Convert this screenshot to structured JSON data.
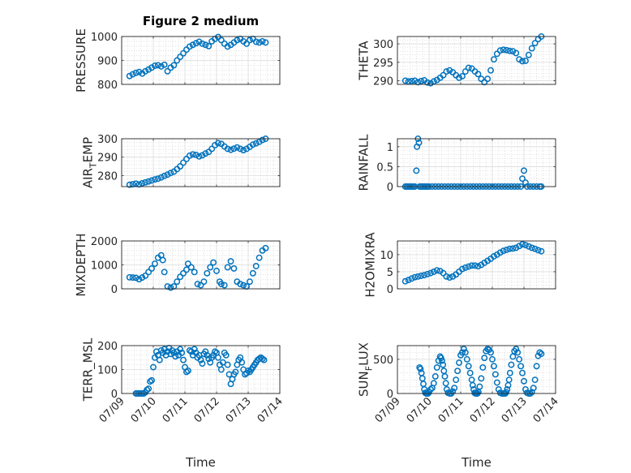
{
  "chart_data": [
    {
      "type": "scatter",
      "title": "Figure 2 medium",
      "xlabel": "",
      "ylabel": "PRESSURE",
      "xlim": [
        9,
        14
      ],
      "ylim": [
        800,
        1000
      ],
      "xticks": [
        9,
        10,
        11,
        12,
        13,
        14
      ],
      "xtick_labels": [],
      "yticks": [
        800,
        900,
        1000
      ],
      "ytick_labels": [
        "800",
        "900",
        "1000"
      ],
      "grid": true,
      "minor_grid": true,
      "color": "#0072BD",
      "x": [
        9.25,
        9.35,
        9.45,
        9.55,
        9.65,
        9.75,
        9.85,
        9.95,
        10.05,
        10.15,
        10.25,
        10.35,
        10.45,
        10.55,
        10.65,
        10.75,
        10.85,
        10.95,
        11.05,
        11.15,
        11.25,
        11.35,
        11.45,
        11.55,
        11.65,
        11.75,
        11.85,
        11.95,
        12.05,
        12.15,
        12.25,
        12.35,
        12.45,
        12.55,
        12.65,
        12.75,
        12.85,
        12.95,
        13.05,
        13.15,
        13.25,
        13.35,
        13.45,
        13.55
      ],
      "y": [
        835,
        842,
        848,
        852,
        845,
        855,
        862,
        870,
        878,
        880,
        875,
        882,
        855,
        870,
        880,
        900,
        915,
        930,
        945,
        958,
        965,
        972,
        978,
        970,
        965,
        960,
        980,
        990,
        998,
        985,
        970,
        958,
        965,
        975,
        985,
        990,
        980,
        970,
        985,
        990,
        978,
        975,
        980,
        975
      ]
    },
    {
      "type": "scatter",
      "title": "",
      "xlabel": "",
      "ylabel": "THETA",
      "xlim": [
        9,
        14
      ],
      "ylim": [
        289,
        302
      ],
      "xticks": [
        9,
        10,
        11,
        12,
        13,
        14
      ],
      "xtick_labels": [],
      "yticks": [
        290,
        295,
        300
      ],
      "ytick_labels": [
        "290",
        "295",
        "300"
      ],
      "grid": true,
      "minor_grid": true,
      "color": "#0072BD",
      "x": [
        9.25,
        9.35,
        9.45,
        9.55,
        9.65,
        9.75,
        9.85,
        9.95,
        10.05,
        10.15,
        10.25,
        10.35,
        10.45,
        10.55,
        10.65,
        10.75,
        10.85,
        10.95,
        11.05,
        11.15,
        11.25,
        11.35,
        11.45,
        11.55,
        11.65,
        11.75,
        11.85,
        11.95,
        12.05,
        12.15,
        12.25,
        12.35,
        12.45,
        12.55,
        12.65,
        12.75,
        12.85,
        12.95,
        13.05,
        13.15,
        13.25,
        13.35,
        13.45,
        13.55
      ],
      "y": [
        290.0,
        289.8,
        289.9,
        290.0,
        289.6,
        289.9,
        290.1,
        289.5,
        289.3,
        289.8,
        290.2,
        290.8,
        291.5,
        292.5,
        292.8,
        292.3,
        291.5,
        290.8,
        291.2,
        292.5,
        293.5,
        293.3,
        292.5,
        291.8,
        290.5,
        289.6,
        290.5,
        292.8,
        295.8,
        297.3,
        298.2,
        298.4,
        298.3,
        298.1,
        298.0,
        297.5,
        295.8,
        295.3,
        295.4,
        297.0,
        298.8,
        300.2,
        301.3,
        302.0
      ]
    },
    {
      "type": "scatter",
      "title": "",
      "xlabel": "",
      "ylabel": "AIR_TEMP",
      "xlim": [
        9,
        14
      ],
      "ylim": [
        274,
        300
      ],
      "xticks": [
        9,
        10,
        11,
        12,
        13,
        14
      ],
      "xtick_labels": [],
      "yticks": [
        280,
        290,
        300
      ],
      "ytick_labels": [
        "280",
        "290",
        "300"
      ],
      "grid": true,
      "minor_grid": true,
      "color": "#0072BD",
      "x": [
        9.25,
        9.35,
        9.45,
        9.55,
        9.65,
        9.75,
        9.85,
        9.95,
        10.05,
        10.15,
        10.25,
        10.35,
        10.45,
        10.55,
        10.65,
        10.75,
        10.85,
        10.95,
        11.05,
        11.15,
        11.25,
        11.35,
        11.45,
        11.55,
        11.65,
        11.75,
        11.85,
        11.95,
        12.05,
        12.15,
        12.25,
        12.35,
        12.45,
        12.55,
        12.65,
        12.75,
        12.85,
        12.95,
        13.05,
        13.15,
        13.25,
        13.35,
        13.45,
        13.55
      ],
      "y": [
        275.0,
        275.3,
        275.6,
        275.2,
        275.8,
        276.3,
        276.8,
        277.3,
        277.9,
        278.3,
        279.0,
        279.8,
        280.5,
        281.4,
        282.1,
        283.5,
        285.0,
        287.0,
        289.0,
        290.8,
        291.5,
        291.2,
        290.4,
        291.0,
        292.0,
        292.8,
        294.5,
        296.5,
        297.6,
        297.2,
        295.8,
        294.5,
        294.0,
        294.6,
        295.3,
        294.5,
        293.8,
        294.5,
        295.6,
        296.8,
        297.5,
        298.3,
        299.3,
        300.0
      ]
    },
    {
      "type": "scatter",
      "title": "",
      "xlabel": "",
      "ylabel": "RAINFALL",
      "xlim": [
        9,
        14
      ],
      "ylim": [
        0,
        1.2
      ],
      "xticks": [
        9,
        10,
        11,
        12,
        13,
        14
      ],
      "xtick_labels": [],
      "yticks": [
        0,
        0.5,
        1
      ],
      "ytick_labels": [
        "0",
        "0.5",
        "1"
      ],
      "grid": true,
      "minor_grid": true,
      "color": "#0072BD",
      "x": [
        9.25,
        9.3,
        9.35,
        9.4,
        9.45,
        9.5,
        9.55,
        9.6,
        9.62,
        9.65,
        9.68,
        9.7,
        9.75,
        9.8,
        9.85,
        9.9,
        9.95,
        10.0,
        10.1,
        10.2,
        10.3,
        10.4,
        10.5,
        10.6,
        10.7,
        10.8,
        10.9,
        11.0,
        11.1,
        11.2,
        11.3,
        11.4,
        11.5,
        11.6,
        11.7,
        11.8,
        11.9,
        12.0,
        12.1,
        12.2,
        12.3,
        12.4,
        12.5,
        12.6,
        12.7,
        12.8,
        12.9,
        12.95,
        13.0,
        13.05,
        13.1,
        13.2,
        13.3,
        13.4,
        13.5,
        13.55
      ],
      "y": [
        0,
        0,
        0,
        0,
        0,
        0,
        0,
        0.4,
        1.0,
        1.2,
        1.1,
        0,
        0,
        0,
        0,
        0,
        0,
        0,
        0,
        0,
        0,
        0,
        0,
        0,
        0,
        0,
        0,
        0,
        0,
        0,
        0,
        0,
        0,
        0,
        0,
        0,
        0,
        0,
        0,
        0,
        0,
        0,
        0,
        0,
        0,
        0,
        0,
        0.2,
        0.4,
        0.1,
        0,
        0,
        0,
        0,
        0,
        0
      ]
    },
    {
      "type": "scatter",
      "title": "",
      "xlabel": "",
      "ylabel": "MIXDEPTH",
      "xlim": [
        9,
        14
      ],
      "ylim": [
        0,
        2000
      ],
      "xticks": [
        9,
        10,
        11,
        12,
        13,
        14
      ],
      "xtick_labels": [],
      "yticks": [
        0,
        1000,
        2000
      ],
      "ytick_labels": [
        "0",
        "1000",
        "2000"
      ],
      "grid": true,
      "minor_grid": true,
      "color": "#0072BD",
      "x": [
        9.25,
        9.35,
        9.45,
        9.55,
        9.65,
        9.75,
        9.85,
        9.95,
        10.05,
        10.15,
        10.25,
        10.3,
        10.35,
        10.45,
        10.55,
        10.65,
        10.75,
        10.85,
        10.95,
        11.05,
        11.1,
        11.2,
        11.3,
        11.4,
        11.5,
        11.6,
        11.7,
        11.8,
        11.9,
        12.0,
        12.1,
        12.15,
        12.25,
        12.35,
        12.45,
        12.55,
        12.65,
        12.75,
        12.85,
        12.95,
        13.05,
        13.15,
        13.25,
        13.35,
        13.45,
        13.55
      ],
      "y": [
        480,
        470,
        460,
        400,
        470,
        550,
        700,
        850,
        1050,
        1300,
        1400,
        1200,
        700,
        100,
        50,
        100,
        300,
        500,
        650,
        800,
        1050,
        900,
        700,
        200,
        150,
        300,
        650,
        900,
        1100,
        750,
        300,
        200,
        150,
        900,
        1150,
        850,
        300,
        200,
        150,
        100,
        300,
        650,
        950,
        1300,
        1600,
        1700
      ]
    },
    {
      "type": "scatter",
      "title": "",
      "xlabel": "",
      "ylabel": "H2OMIXRA",
      "xlim": [
        9,
        14
      ],
      "ylim": [
        0,
        14
      ],
      "xticks": [
        9,
        10,
        11,
        12,
        13,
        14
      ],
      "xtick_labels": [],
      "yticks": [
        0,
        5,
        10
      ],
      "ytick_labels": [
        "0",
        "5",
        "10"
      ],
      "grid": true,
      "minor_grid": true,
      "color": "#0072BD",
      "x": [
        9.25,
        9.35,
        9.45,
        9.55,
        9.65,
        9.75,
        9.85,
        9.95,
        10.05,
        10.15,
        10.25,
        10.35,
        10.45,
        10.55,
        10.65,
        10.75,
        10.85,
        10.95,
        11.05,
        11.15,
        11.25,
        11.35,
        11.45,
        11.55,
        11.65,
        11.75,
        11.85,
        11.95,
        12.05,
        12.15,
        12.25,
        12.35,
        12.45,
        12.55,
        12.65,
        12.75,
        12.85,
        12.95,
        13.05,
        13.15,
        13.25,
        13.35,
        13.45,
        13.55
      ],
      "y": [
        2.2,
        2.6,
        3.0,
        3.4,
        3.6,
        3.8,
        4.0,
        4.3,
        4.6,
        5.0,
        5.4,
        5.2,
        4.6,
        3.6,
        3.3,
        3.6,
        4.2,
        5.0,
        5.8,
        6.2,
        6.5,
        6.8,
        6.8,
        6.6,
        7.0,
        7.6,
        8.2,
        8.8,
        9.5,
        10.0,
        10.6,
        11.1,
        11.4,
        11.7,
        11.8,
        12.0,
        12.5,
        13.0,
        12.8,
        12.4,
        12.0,
        11.7,
        11.3,
        11.0
      ]
    },
    {
      "type": "scatter",
      "title": "",
      "xlabel": "Time",
      "ylabel": "TERR_MSL",
      "xlim": [
        9,
        14
      ],
      "ylim": [
        0,
        200
      ],
      "xticks": [
        9,
        10,
        11,
        12,
        13,
        14
      ],
      "xtick_labels": [
        "07/09",
        "07/10",
        "07/11",
        "07/12",
        "07/13",
        "07/14"
      ],
      "yticks": [
        0,
        100,
        200
      ],
      "ytick_labels": [
        "0",
        "100",
        "200"
      ],
      "grid": true,
      "minor_grid": true,
      "color": "#0072BD",
      "x": [
        9.45,
        9.5,
        9.55,
        9.6,
        9.65,
        9.7,
        9.75,
        9.8,
        9.85,
        9.9,
        9.95,
        10.0,
        10.05,
        10.1,
        10.15,
        10.2,
        10.25,
        10.3,
        10.35,
        10.4,
        10.45,
        10.5,
        10.55,
        10.6,
        10.65,
        10.7,
        10.75,
        10.8,
        10.85,
        10.9,
        10.95,
        11.0,
        11.05,
        11.1,
        11.15,
        11.2,
        11.25,
        11.3,
        11.35,
        11.4,
        11.45,
        11.5,
        11.55,
        11.6,
        11.65,
        11.7,
        11.75,
        11.8,
        11.85,
        11.9,
        11.95,
        12.0,
        12.05,
        12.1,
        12.15,
        12.2,
        12.25,
        12.3,
        12.35,
        12.4,
        12.45,
        12.5,
        12.55,
        12.6,
        12.65,
        12.7,
        12.75,
        12.8,
        12.85,
        12.9,
        12.95,
        13.0,
        13.05,
        13.1,
        13.15,
        13.2,
        13.25,
        13.3,
        13.35,
        13.4,
        13.45,
        13.5
      ],
      "y": [
        0,
        0,
        0,
        0,
        0,
        0,
        5,
        15,
        20,
        50,
        55,
        110,
        150,
        175,
        160,
        140,
        180,
        170,
        185,
        160,
        175,
        190,
        165,
        180,
        170,
        155,
        175,
        160,
        185,
        170,
        140,
        110,
        90,
        95,
        180,
        175,
        160,
        185,
        170,
        150,
        160,
        140,
        125,
        165,
        175,
        160,
        145,
        130,
        150,
        160,
        175,
        170,
        150,
        120,
        100,
        130,
        170,
        160,
        120,
        80,
        40,
        60,
        80,
        90,
        120,
        140,
        150,
        130,
        100,
        80,
        85,
        95,
        90,
        100,
        110,
        120,
        130,
        140,
        145,
        150,
        145,
        140
      ]
    },
    {
      "type": "scatter",
      "title": "",
      "xlabel": "Time",
      "ylabel": "SUN_FLUX",
      "xlim": [
        9,
        14
      ],
      "ylim": [
        0,
        700
      ],
      "xticks": [
        9,
        10,
        11,
        12,
        13,
        14
      ],
      "xtick_labels": [
        "07/09",
        "07/10",
        "07/11",
        "07/12",
        "07/13",
        "07/14"
      ],
      "yticks": [
        0,
        500
      ],
      "ytick_labels": [
        "0",
        "500"
      ],
      "grid": true,
      "minor_grid": true,
      "color": "#0072BD",
      "x": [
        9.7,
        9.73,
        9.76,
        9.79,
        9.82,
        9.85,
        9.88,
        9.91,
        9.94,
        9.97,
        10.0,
        10.05,
        10.1,
        10.15,
        10.2,
        10.25,
        10.3,
        10.35,
        10.38,
        10.41,
        10.44,
        10.47,
        10.5,
        10.53,
        10.56,
        10.6,
        10.65,
        10.7,
        10.75,
        10.8,
        10.85,
        10.9,
        10.95,
        11.0,
        11.05,
        11.1,
        11.15,
        11.2,
        11.25,
        11.3,
        11.35,
        11.38,
        11.41,
        11.44,
        11.47,
        11.5,
        11.53,
        11.56,
        11.6,
        11.65,
        11.7,
        11.75,
        11.8,
        11.85,
        11.9,
        11.95,
        12.0,
        12.05,
        12.1,
        12.15,
        12.2,
        12.25,
        12.3,
        12.35,
        12.38,
        12.41,
        12.44,
        12.47,
        12.5,
        12.53,
        12.56,
        12.6,
        12.65,
        12.7,
        12.75,
        12.8,
        12.85,
        12.9,
        12.95,
        13.0,
        13.05,
        13.1,
        13.15,
        13.2,
        13.25,
        13.3,
        13.35,
        13.4,
        13.45,
        13.5,
        13.55
      ],
      "y": [
        380,
        360,
        300,
        220,
        140,
        60,
        10,
        0,
        0,
        0,
        20,
        60,
        80,
        150,
        250,
        380,
        480,
        540,
        520,
        480,
        420,
        330,
        250,
        150,
        60,
        10,
        0,
        0,
        30,
        80,
        200,
        330,
        450,
        560,
        600,
        650,
        600,
        500,
        400,
        300,
        200,
        120,
        60,
        10,
        0,
        0,
        0,
        20,
        100,
        220,
        380,
        520,
        620,
        650,
        640,
        600,
        500,
        400,
        280,
        160,
        60,
        10,
        0,
        0,
        0,
        0,
        20,
        60,
        120,
        200,
        300,
        420,
        540,
        620,
        650,
        600,
        500,
        400,
        300,
        180,
        60,
        10,
        0,
        0,
        20,
        80,
        200,
        400,
        550,
        600,
        580
      ]
    }
  ]
}
